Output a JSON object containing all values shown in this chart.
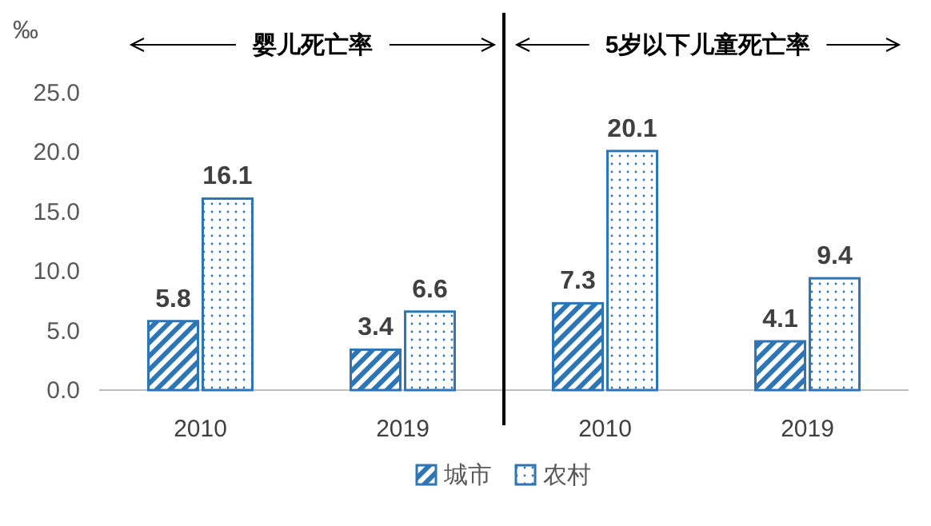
{
  "chart_data": {
    "type": "bar",
    "ylabel": "‰",
    "categories": [
      "2010",
      "2019",
      "2010",
      "2019"
    ],
    "series": [
      {
        "name": "城市",
        "color": "#2e75b6",
        "values": [
          5.8,
          3.4,
          7.3,
          4.1
        ]
      },
      {
        "name": "农村",
        "color": "#2e75b6",
        "values": [
          16.1,
          6.6,
          20.1,
          9.4
        ]
      }
    ],
    "ylim": [
      0,
      25
    ],
    "yticks": [
      {
        "value": 0,
        "label": "0.0"
      },
      {
        "value": 5,
        "label": "5.0"
      },
      {
        "value": 10,
        "label": "10.0"
      },
      {
        "value": 15,
        "label": "15.0"
      },
      {
        "value": 20,
        "label": "20.0"
      },
      {
        "value": 25,
        "label": "25.0"
      }
    ],
    "annotations": [
      "婴儿死亡率",
      "5岁以下儿童死亡率"
    ],
    "data_labels": true,
    "legend": "bottom",
    "grid": false
  }
}
